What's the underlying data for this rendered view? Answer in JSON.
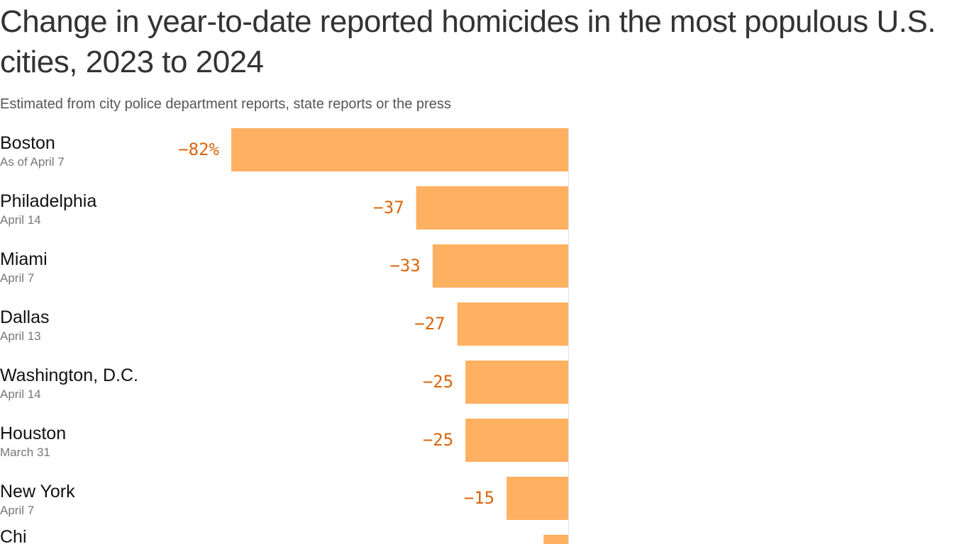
{
  "title": "Change in year-to-date reported homicides in the most populous U.S. cities, 2023 to 2024",
  "subtitle": "Estimated from city police department reports, state reports or the press",
  "chart_data": {
    "type": "bar",
    "orientation": "horizontal",
    "unit": "%",
    "bar_color": "#ffb060",
    "label_color": "#d9650b",
    "categories": [
      "Boston",
      "Philadelphia",
      "Miami",
      "Dallas",
      "Washington, D.C.",
      "Houston",
      "New York",
      "Chi"
    ],
    "dates": [
      "As of April 7",
      "April 14",
      "April 7",
      "April 13",
      "April 14",
      "March 31",
      "April 7",
      ""
    ],
    "values": [
      -82,
      -37,
      -33,
      -27,
      -25,
      -25,
      -15,
      -6
    ],
    "value_labels": [
      "−82%",
      "−37",
      "−33",
      "−27",
      "−25",
      "−25",
      "−15",
      ""
    ]
  }
}
